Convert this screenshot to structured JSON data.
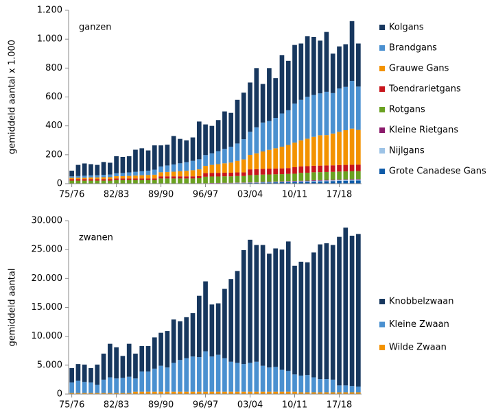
{
  "chart_data": [
    {
      "type": "bar",
      "stacked": true,
      "label": "ganzen",
      "ylabel": "gemiddeld aantal x 1.000",
      "categories": [
        "75/76",
        null,
        null,
        null,
        null,
        null,
        null,
        "82/83",
        null,
        null,
        null,
        null,
        null,
        null,
        "89/90",
        null,
        null,
        null,
        null,
        null,
        null,
        "96/97",
        null,
        null,
        null,
        null,
        null,
        null,
        "03/04",
        null,
        null,
        null,
        null,
        null,
        null,
        "10/11",
        null,
        null,
        null,
        null,
        null,
        null,
        "17/18",
        null,
        null,
        null
      ],
      "ylim": [
        0,
        1200
      ],
      "yticks": [
        0,
        200,
        400,
        600,
        800,
        {
          "value": 1000,
          "label": "1.000"
        },
        {
          "value": 1200,
          "label": "1.200"
        }
      ],
      "series": [
        {
          "name": "Grote Canadese Gans",
          "color": "#0f5ba8",
          "values": [
            0,
            0,
            0,
            0,
            0,
            0,
            0,
            0,
            0,
            0,
            0,
            0,
            0,
            0,
            0,
            0,
            0,
            0,
            0,
            0,
            1,
            1,
            2,
            2,
            3,
            3,
            4,
            4,
            5,
            6,
            7,
            8,
            9,
            10,
            11,
            12,
            13,
            14,
            15,
            16,
            17,
            18,
            19,
            20,
            21,
            22
          ]
        },
        {
          "name": "Nijlgans",
          "color": "#9dc3e6",
          "values": [
            0,
            0,
            0,
            0,
            0,
            0,
            0,
            0,
            0,
            0,
            0,
            0,
            0,
            0,
            0,
            0,
            0,
            0,
            0,
            0,
            0,
            0,
            1,
            1,
            1,
            1,
            2,
            2,
            2,
            2,
            3,
            3,
            3,
            3,
            4,
            4,
            4,
            4,
            5,
            5,
            5,
            5,
            6,
            6,
            6,
            6
          ]
        },
        {
          "name": "Kleine Rietgans",
          "color": "#8b1a6b",
          "values": [
            1,
            1,
            1,
            1,
            1,
            1,
            1,
            1,
            1,
            1,
            1,
            1,
            1,
            1,
            1,
            1,
            1,
            1,
            1,
            1,
            2,
            2,
            2,
            2,
            2,
            2,
            2,
            2,
            2,
            2,
            3,
            3,
            3,
            3,
            3,
            3,
            3,
            3,
            4,
            4,
            4,
            4,
            4,
            4,
            4,
            4
          ]
        },
        {
          "name": "Rotgans",
          "color": "#6aa121",
          "values": [
            20,
            20,
            20,
            20,
            20,
            20,
            20,
            25,
            25,
            25,
            25,
            25,
            25,
            25,
            35,
            35,
            35,
            35,
            35,
            35,
            35,
            45,
            45,
            45,
            45,
            45,
            45,
            45,
            50,
            50,
            50,
            50,
            50,
            50,
            50,
            50,
            55,
            55,
            55,
            55,
            55,
            55,
            55,
            55,
            55,
            55
          ]
        },
        {
          "name": "Toendrarietgans",
          "color": "#c8161d",
          "values": [
            10,
            10,
            10,
            10,
            10,
            10,
            10,
            10,
            10,
            10,
            10,
            10,
            10,
            10,
            15,
            15,
            15,
            15,
            15,
            15,
            15,
            25,
            25,
            25,
            25,
            25,
            25,
            25,
            40,
            40,
            40,
            40,
            40,
            40,
            40,
            45,
            45,
            45,
            45,
            45,
            45,
            45,
            45,
            45,
            45,
            45
          ]
        },
        {
          "name": "Grauwe Gans",
          "color": "#f39200",
          "values": [
            10,
            10,
            10,
            12,
            12,
            14,
            14,
            16,
            16,
            18,
            20,
            22,
            24,
            26,
            28,
            30,
            32,
            35,
            38,
            42,
            46,
            50,
            55,
            60,
            65,
            70,
            80,
            90,
            100,
            110,
            120,
            130,
            140,
            150,
            160,
            170,
            180,
            190,
            200,
            210,
            210,
            220,
            230,
            240,
            250,
            240
          ]
        },
        {
          "name": "Brandgans",
          "color": "#4a90d0",
          "values": [
            10,
            12,
            14,
            14,
            15,
            16,
            18,
            20,
            22,
            24,
            26,
            28,
            30,
            35,
            40,
            45,
            50,
            55,
            60,
            65,
            70,
            75,
            80,
            90,
            100,
            110,
            120,
            140,
            160,
            180,
            200,
            200,
            210,
            230,
            240,
            270,
            280,
            290,
            290,
            290,
            300,
            280,
            300,
            300,
            330,
            300
          ]
        },
        {
          "name": "Kolgans",
          "color": "#17375e",
          "values": [
            39,
            77,
            85,
            78,
            72,
            89,
            82,
            118,
            111,
            112,
            153,
            159,
            140,
            168,
            146,
            144,
            197,
            169,
            151,
            162,
            261,
            212,
            190,
            215,
            259,
            234,
            302,
            322,
            341,
            410,
            267,
            366,
            275,
            404,
            342,
            406,
            390,
            419,
            401,
            365,
            414,
            273,
            291,
            295,
            414,
            298
          ]
        }
      ]
    },
    {
      "type": "bar",
      "stacked": true,
      "label": "zwanen",
      "ylabel": "gemiddeld aantal",
      "categories": [
        "75/76",
        null,
        null,
        null,
        null,
        null,
        null,
        "82/83",
        null,
        null,
        null,
        null,
        null,
        null,
        "89/90",
        null,
        null,
        null,
        null,
        null,
        null,
        "96/97",
        null,
        null,
        null,
        null,
        null,
        null,
        "03/04",
        null,
        null,
        null,
        null,
        null,
        null,
        "10/11",
        null,
        null,
        null,
        null,
        null,
        null,
        "17/18",
        null,
        null,
        null
      ],
      "ylim": [
        0,
        30000
      ],
      "yticks": [
        0,
        {
          "value": 5000,
          "label": "5.000"
        },
        {
          "value": 10000,
          "label": "10.000"
        },
        {
          "value": 15000,
          "label": "15.000"
        },
        {
          "value": 20000,
          "label": "20.000"
        },
        {
          "value": 25000,
          "label": "25.000"
        },
        {
          "value": 30000,
          "label": "30.000"
        }
      ],
      "series": [
        {
          "name": "Wilde Zwaan",
          "color": "#f39200",
          "values": [
            200,
            200,
            200,
            200,
            200,
            200,
            200,
            200,
            200,
            200,
            400,
            400,
            400,
            400,
            400,
            400,
            400,
            400,
            400,
            400,
            400,
            400,
            400,
            400,
            400,
            400,
            400,
            400,
            400,
            400,
            400,
            400,
            400,
            400,
            400,
            400,
            300,
            300,
            300,
            300,
            300,
            300,
            300,
            300,
            300,
            300
          ]
        },
        {
          "name": "Kleine Zwaan",
          "color": "#4a90d0",
          "values": [
            1800,
            2100,
            1900,
            1800,
            1400,
            2300,
            2700,
            2500,
            2600,
            2800,
            2300,
            3500,
            3500,
            4000,
            4500,
            4200,
            5000,
            5500,
            5800,
            6100,
            6000,
            7000,
            6100,
            6400,
            5800,
            5200,
            5000,
            4800,
            5000,
            5200,
            4500,
            4200,
            4300,
            3800,
            3600,
            3000,
            2900,
            3000,
            2600,
            2300,
            2300,
            2200,
            1200,
            1200,
            1100,
            1000
          ]
        },
        {
          "name": "Knobbelzwaan",
          "color": "#17375e",
          "values": [
            2500,
            2900,
            3000,
            2500,
            3500,
            4500,
            5800,
            5400,
            3800,
            5700,
            4300,
            4400,
            4400,
            5400,
            5700,
            6300,
            7500,
            6700,
            7100,
            7500,
            10600,
            12100,
            9000,
            8900,
            12000,
            14300,
            15900,
            19700,
            21300,
            20200,
            20900,
            19700,
            20500,
            20800,
            22400,
            18800,
            19700,
            19500,
            21600,
            23300,
            23500,
            23300,
            25700,
            27300,
            26000,
            26400
          ]
        }
      ]
    }
  ]
}
